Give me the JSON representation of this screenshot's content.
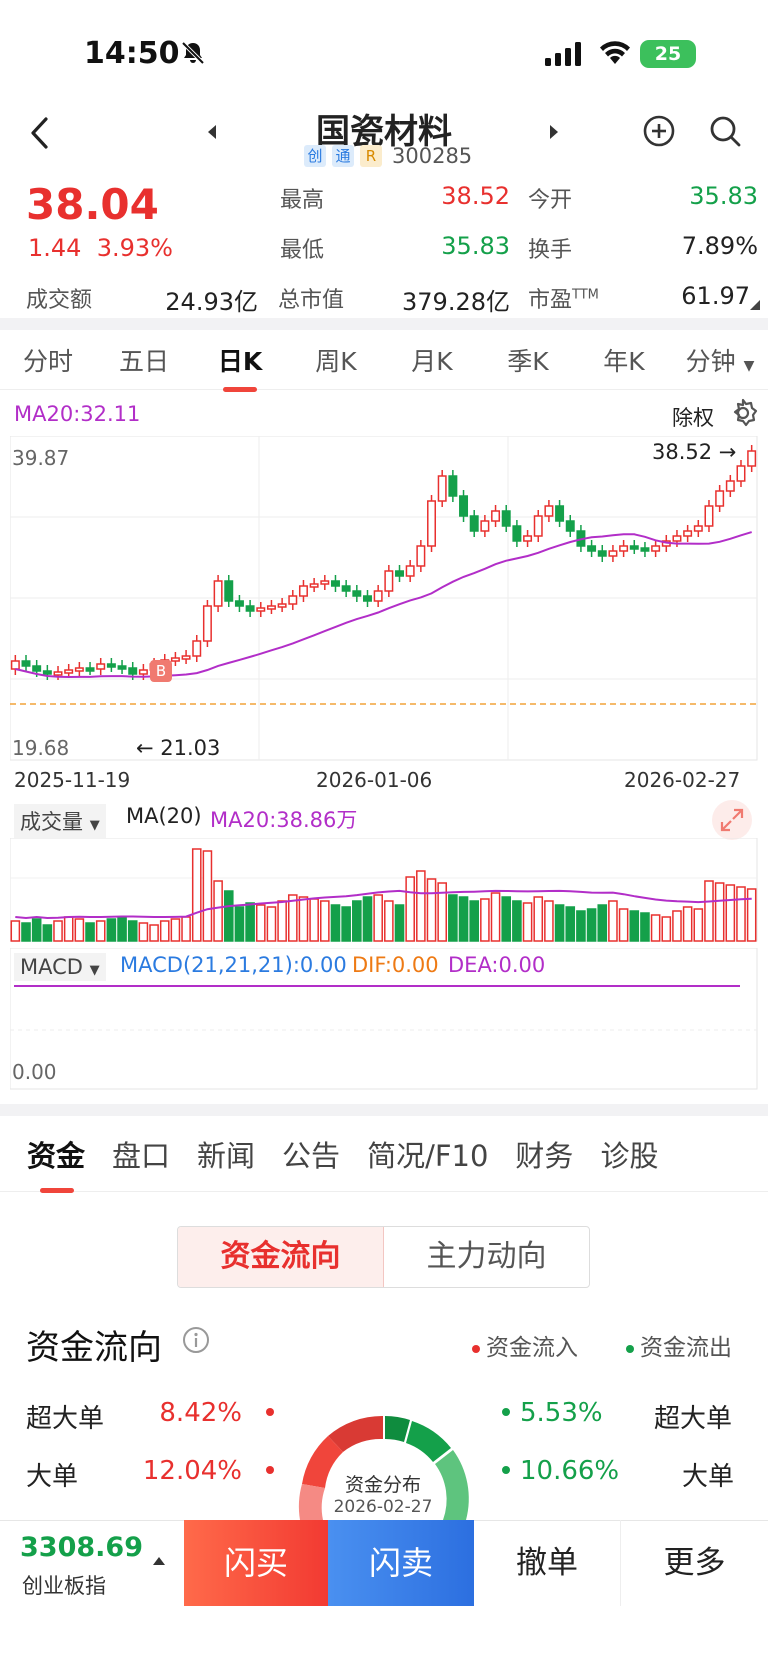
{
  "status_bar": {
    "time": "14:50",
    "battery": "25"
  },
  "header": {
    "stock_name": "国瓷材料",
    "tags": [
      "创",
      "通",
      "R"
    ],
    "stock_code": "300285"
  },
  "quote": {
    "price": "38.04",
    "change": "1.44",
    "change_pct": "3.93%",
    "high_label": "最高",
    "high": "38.52",
    "open_label": "今开",
    "open": "35.83",
    "low_label": "最低",
    "low": "35.83",
    "turnover_label": "换手",
    "turnover": "7.89%",
    "amount_label": "成交额",
    "amount": "24.93亿",
    "mktcap_label": "总市值",
    "mktcap": "379.28亿",
    "pe_label": "市盈",
    "pe_sup": "TTM",
    "pe": "61.97"
  },
  "chart_tabs": [
    "分时",
    "五日",
    "日K",
    "周K",
    "月K",
    "季K",
    "年K",
    "分钟"
  ],
  "chart_tabs_active": 2,
  "kline": {
    "ma20_label": "MA20:32.11",
    "adjust_label": "除权",
    "max_label": "39.87",
    "min_label": "19.68",
    "high_marker": "38.52",
    "low_marker": "21.03",
    "buy_marker": "B",
    "dates": [
      "2025-11-19",
      "2026-01-06",
      "2026-02-27"
    ]
  },
  "volume": {
    "label": "成交量",
    "ma_label": "MA(20)",
    "ma_value": "MA20:38.86万"
  },
  "macd": {
    "label": "MACD",
    "main": "MACD(21,21,21):0.00",
    "dif": "DIF:0.00",
    "dea": "DEA:0.00",
    "zero_label": "0.00"
  },
  "info_tabs": [
    "资金",
    "盘口",
    "新闻",
    "公告",
    "简况/F10",
    "财务",
    "诊股"
  ],
  "segment": [
    "资金流向",
    "主力动向"
  ],
  "flow": {
    "title": "资金流向",
    "legend_in": "资金流入",
    "legend_out": "资金流出",
    "donut_title": "资金分布",
    "donut_date": "2026-02-27",
    "rows": [
      {
        "label": "超大单",
        "in": "8.42%",
        "out": "5.53%"
      },
      {
        "label": "大单",
        "in": "12.04%",
        "out": "10.66%"
      }
    ],
    "colors": {
      "in": "#e8302e",
      "out": "#14a04a"
    }
  },
  "bottom": {
    "index_value": "3308.69",
    "index_name": "创业板指",
    "buy": "闪买",
    "sell": "闪卖",
    "cancel": "撤单",
    "more": "更多"
  }
}
